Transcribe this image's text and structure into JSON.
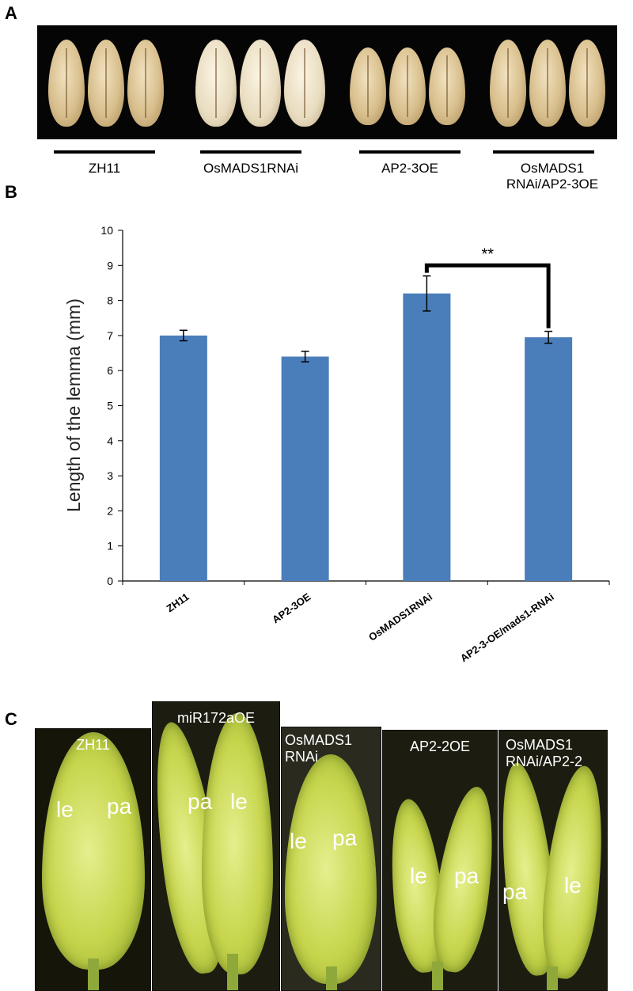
{
  "panels": {
    "a": "A",
    "b": "B",
    "c": "C"
  },
  "panel_a": {
    "genotypes": [
      {
        "label": "ZH11"
      },
      {
        "label": "OsMADS1RNAi"
      },
      {
        "label": "AP2-3OE"
      },
      {
        "label": "OsMADS1\nRNAi/AP2-3OE"
      }
    ]
  },
  "chart_data": {
    "type": "bar",
    "title": "",
    "xlabel": "",
    "ylabel": "Length of the lemma (mm)",
    "ylim": [
      0,
      10
    ],
    "yticks": [
      0,
      1,
      2,
      3,
      4,
      5,
      6,
      7,
      8,
      9,
      10
    ],
    "categories": [
      "ZH11",
      "AP2-3OE",
      "OsMADS1RNAi",
      "AP2-3-OE/mads1-RNAi"
    ],
    "values": [
      7.0,
      6.4,
      8.2,
      6.95
    ],
    "errors": [
      0.15,
      0.15,
      0.5,
      0.17
    ],
    "bar_color": "#4a7ebb",
    "significance": {
      "from": "OsMADS1RNAi",
      "to": "AP2-3-OE/mads1-RNAi",
      "label": "**"
    }
  },
  "panel_c": {
    "images": [
      {
        "title": "ZH11",
        "labels": [
          "le",
          "pa"
        ]
      },
      {
        "title": "miR172aOE",
        "labels": [
          "pa",
          "le"
        ]
      },
      {
        "title": "OsMADS1\nRNAi",
        "labels": [
          "le",
          "pa"
        ]
      },
      {
        "title": "AP2-2OE",
        "labels": [
          "le",
          "pa"
        ]
      },
      {
        "title": "OsMADS1\nRNAi/AP2-2",
        "labels": [
          "pa",
          "le"
        ]
      }
    ]
  }
}
